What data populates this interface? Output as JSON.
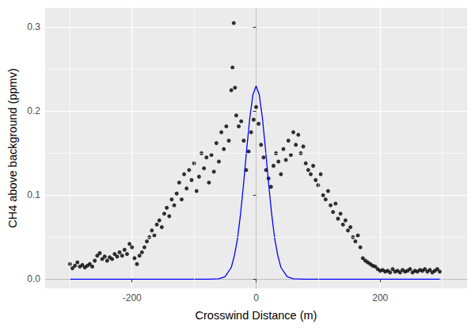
{
  "chart_data": {
    "type": "scatter",
    "x_label": "Crosswind Distance (m)",
    "y_label": "CH4 above background (ppmv)",
    "xlim": [
      -340,
      340
    ],
    "ylim": [
      -0.011,
      0.323
    ],
    "xticks": [
      -200,
      0,
      200
    ],
    "yticks": [
      {
        "value": 0,
        "label": "0.0"
      },
      0.1,
      0.2,
      0.3
    ],
    "grid": true,
    "series": [
      {
        "type": "scatter",
        "color": "#000000",
        "marker": "circle",
        "x": [
          -300,
          -296,
          -292,
          -288,
          -284,
          -280,
          -276,
          -272,
          -268,
          -264,
          -260,
          -256,
          -252,
          -248,
          -244,
          -240,
          -236,
          -232,
          -228,
          -224,
          -220,
          -216,
          -212,
          -208,
          -204,
          -200,
          -196,
          -192,
          -188,
          -184,
          -180,
          -176,
          -172,
          -168,
          -164,
          -160,
          -156,
          -152,
          -148,
          -144,
          -140,
          -136,
          -132,
          -128,
          -124,
          -120,
          -116,
          -112,
          -108,
          -104,
          -100,
          -96,
          -92,
          -88,
          -84,
          -80,
          -76,
          -72,
          -68,
          -64,
          -60,
          -56,
          -52,
          -48,
          -44,
          -40,
          -38,
          -36,
          -34,
          -32,
          -28,
          -24,
          -20,
          -16,
          -12,
          -8,
          -4,
          0,
          4,
          8,
          12,
          16,
          20,
          24,
          28,
          32,
          36,
          40,
          44,
          48,
          52,
          56,
          60,
          64,
          68,
          72,
          76,
          80,
          84,
          88,
          92,
          96,
          100,
          104,
          108,
          112,
          116,
          120,
          124,
          128,
          132,
          136,
          140,
          144,
          148,
          152,
          156,
          160,
          164,
          168,
          172,
          176,
          180,
          184,
          188,
          192,
          196,
          200,
          204,
          208,
          212,
          216,
          220,
          224,
          228,
          232,
          236,
          240,
          244,
          248,
          252,
          256,
          260,
          264,
          268,
          272,
          276,
          280,
          284,
          288,
          292,
          296
        ],
        "values": [
          0.018,
          0.013,
          0.016,
          0.02,
          0.015,
          0.017,
          0.014,
          0.016,
          0.018,
          0.015,
          0.022,
          0.028,
          0.031,
          0.024,
          0.027,
          0.022,
          0.026,
          0.024,
          0.03,
          0.027,
          0.032,
          0.028,
          0.035,
          0.03,
          0.042,
          0.038,
          0.025,
          0.018,
          0.028,
          0.032,
          0.038,
          0.045,
          0.05,
          0.058,
          0.052,
          0.065,
          0.07,
          0.062,
          0.078,
          0.085,
          0.075,
          0.095,
          0.088,
          0.102,
          0.115,
          0.095,
          0.125,
          0.108,
          0.13,
          0.118,
          0.138,
          0.105,
          0.122,
          0.15,
          0.132,
          0.145,
          0.115,
          0.148,
          0.128,
          0.162,
          0.14,
          0.175,
          0.155,
          0.182,
          0.165,
          0.225,
          0.252,
          0.305,
          0.228,
          0.195,
          0.182,
          0.188,
          0.165,
          0.13,
          0.152,
          0.175,
          0.19,
          0.205,
          0.185,
          0.16,
          0.145,
          0.13,
          0.12,
          0.11,
          0.135,
          0.15,
          0.14,
          0.125,
          0.155,
          0.142,
          0.165,
          0.148,
          0.175,
          0.16,
          0.172,
          0.15,
          0.158,
          0.138,
          0.13,
          0.125,
          0.135,
          0.118,
          0.112,
          0.125,
          0.1,
          0.095,
          0.105,
          0.088,
          0.08,
          0.09,
          0.072,
          0.078,
          0.065,
          0.07,
          0.058,
          0.062,
          0.05,
          0.045,
          0.052,
          0.038,
          0.025,
          0.022,
          0.02,
          0.018,
          0.016,
          0.015,
          0.012,
          0.01,
          0.011,
          0.009,
          0.01,
          0.008,
          0.012,
          0.009,
          0.01,
          0.008,
          0.011,
          0.009,
          0.01,
          0.012,
          0.008,
          0.01,
          0.009,
          0.011,
          0.01,
          0.012,
          0.009,
          0.011,
          0.008,
          0.01,
          0.012,
          0.009
        ]
      },
      {
        "type": "line",
        "color": "#0000ff",
        "line_style": "solid",
        "x": [
          -300,
          -100,
          -80,
          -60,
          -50,
          -40,
          -35,
          -30,
          -25,
          -20,
          -15,
          -10,
          -5,
          0,
          5,
          10,
          15,
          20,
          25,
          30,
          35,
          40,
          50,
          60,
          80,
          100,
          296
        ],
        "values": [
          0,
          0,
          0,
          0.0005,
          0.003,
          0.014,
          0.028,
          0.048,
          0.078,
          0.115,
          0.156,
          0.193,
          0.22,
          0.23,
          0.22,
          0.193,
          0.156,
          0.115,
          0.078,
          0.048,
          0.028,
          0.014,
          0.003,
          0.0005,
          0,
          0,
          0
        ]
      }
    ]
  }
}
